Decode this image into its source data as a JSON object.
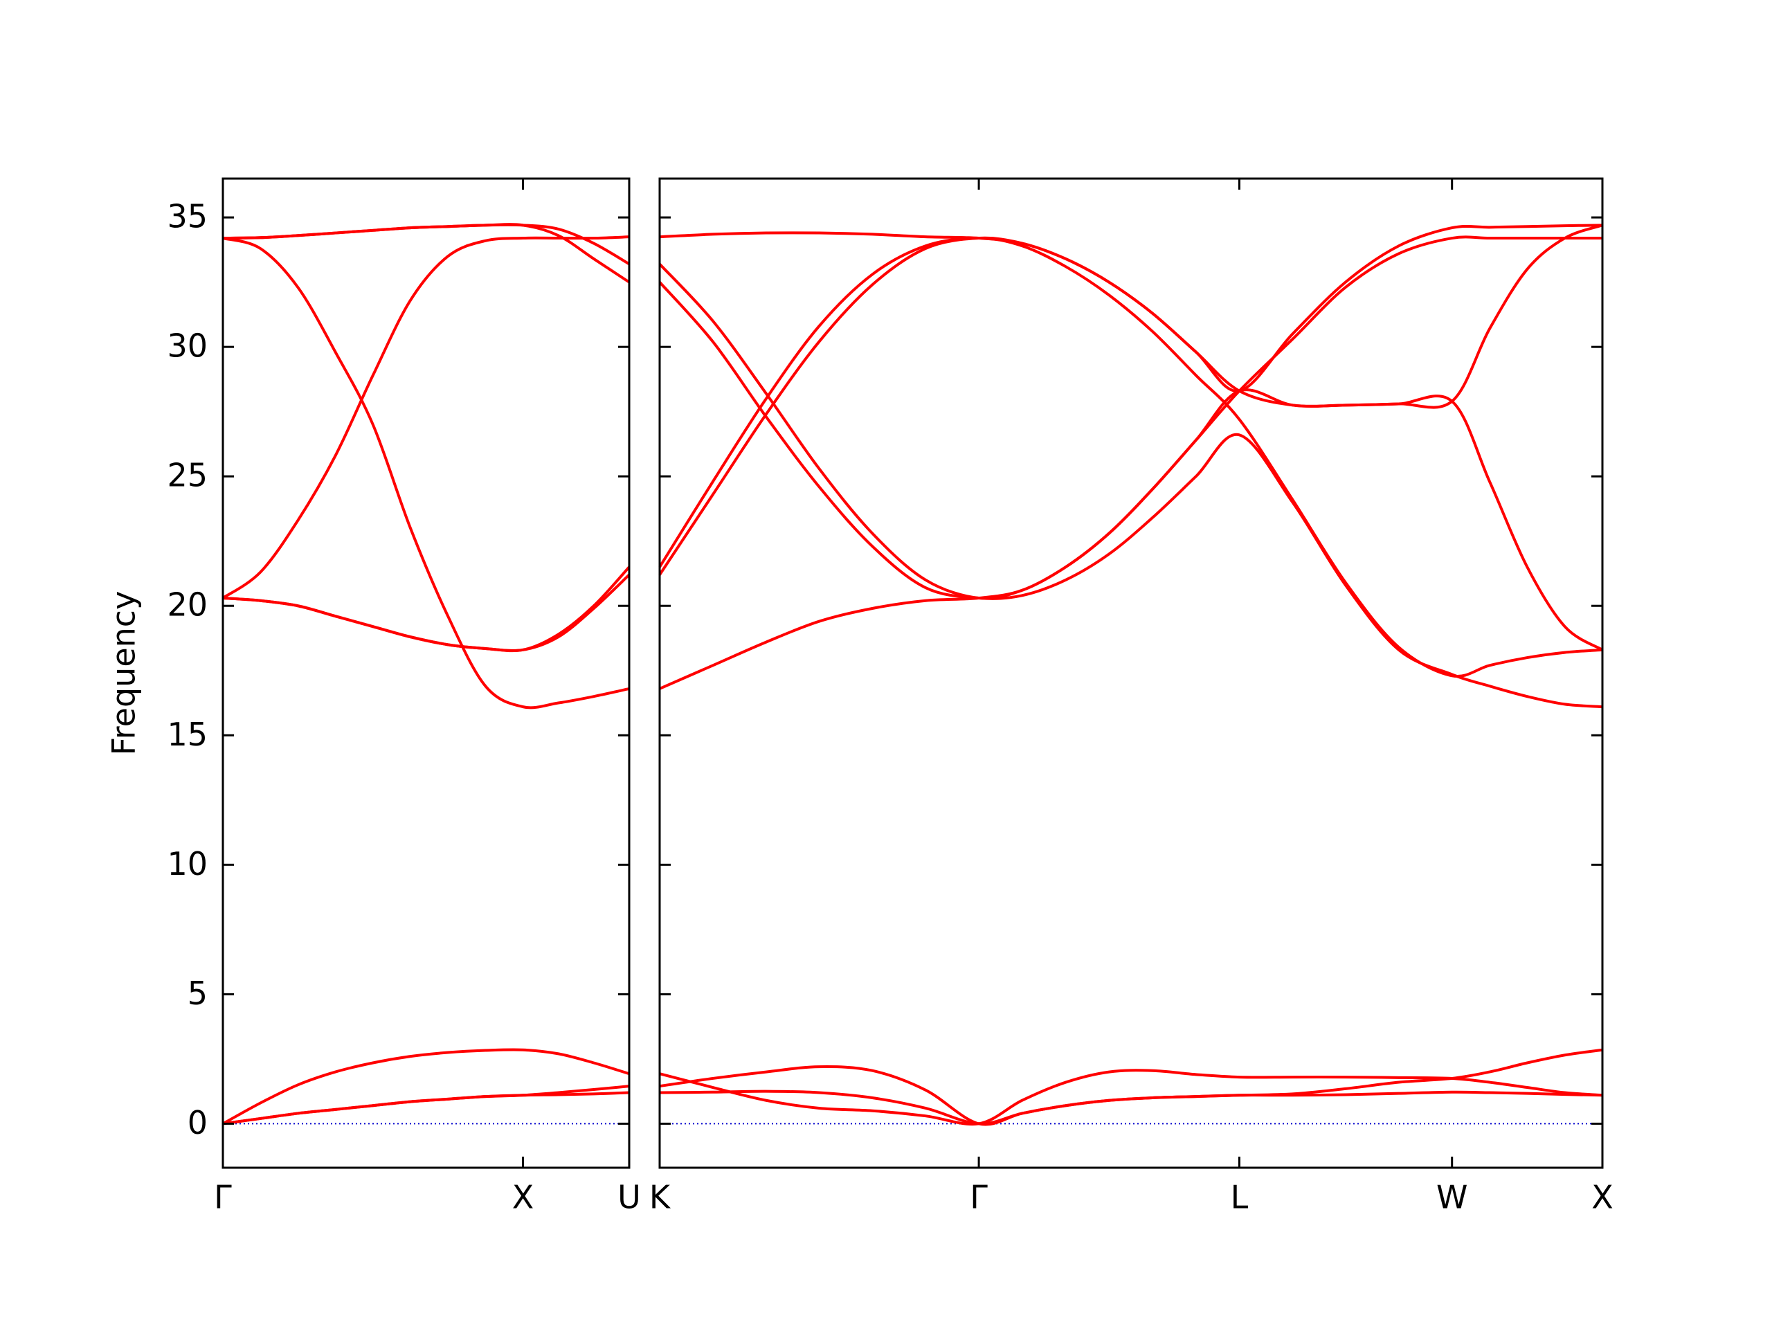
{
  "chart_data": [
    {
      "type": "line",
      "ylabel": "Frequency",
      "x": [
        0,
        0.125,
        0.25,
        0.375,
        0.5,
        0.625,
        0.75,
        0.875,
        1,
        1.118,
        1.236,
        1.354
      ],
      "xlim": [
        0,
        1.354
      ],
      "xticks": [
        {
          "value": 0,
          "label": "Γ"
        },
        {
          "value": 1,
          "label": "X"
        },
        {
          "value": 1.354,
          "label": "U"
        }
      ],
      "ylim": [
        -1.7,
        36.5
      ],
      "yticks": [
        0,
        5,
        10,
        15,
        20,
        25,
        30,
        35
      ],
      "ytick_labels": true,
      "hline": {
        "value": 0,
        "color": "#0000cd"
      },
      "series": [
        {
          "color": "#ff0000",
          "values": [
            0,
            0.2,
            0.4,
            0.55,
            0.7,
            0.85,
            0.95,
            1.05,
            1.1,
            1.12,
            1.15,
            1.2
          ]
        },
        {
          "color": "#ff0000",
          "values": [
            0,
            0.2,
            0.4,
            0.55,
            0.7,
            0.85,
            0.95,
            1.05,
            1.1,
            1.2,
            1.32,
            1.45
          ]
        },
        {
          "color": "#ff0000",
          "values": [
            0,
            0.8,
            1.5,
            2.0,
            2.35,
            2.6,
            2.75,
            2.83,
            2.85,
            2.7,
            2.35,
            1.93
          ]
        },
        {
          "color": "#ff0000",
          "values": [
            34.2,
            34.22,
            34.3,
            34.4,
            34.5,
            34.6,
            34.65,
            34.7,
            34.7,
            34.55,
            34.0,
            33.2
          ]
        },
        {
          "color": "#ff0000",
          "values": [
            34.2,
            34.22,
            34.3,
            34.4,
            34.5,
            34.6,
            34.65,
            34.7,
            34.7,
            34.3,
            33.4,
            32.5
          ]
        },
        {
          "color": "#ff0000",
          "values": [
            20.3,
            21.3,
            23.3,
            25.8,
            28.9,
            31.8,
            33.5,
            34.1,
            34.2,
            34.2,
            34.2,
            34.25
          ]
        },
        {
          "color": "#ff0000",
          "values": [
            34.2,
            33.8,
            32.3,
            29.8,
            27.0,
            23.0,
            19.6,
            16.9,
            16.1,
            16.25,
            16.5,
            16.8
          ]
        },
        {
          "color": "#ff0000",
          "values": [
            20.3,
            20.2,
            20.0,
            19.6,
            19.2,
            18.8,
            18.5,
            18.35,
            18.3,
            18.9,
            20.0,
            21.5
          ]
        },
        {
          "color": "#ff0000",
          "values": [
            20.3,
            20.2,
            20.0,
            19.6,
            19.2,
            18.8,
            18.5,
            18.35,
            18.3,
            18.8,
            19.9,
            21.2
          ]
        }
      ]
    },
    {
      "type": "line",
      "x": [
        1.354,
        1.531,
        1.708,
        1.884,
        2.061,
        2.238,
        2.415,
        2.559,
        2.704,
        2.848,
        2.992,
        3.137,
        3.281,
        3.458,
        3.634,
        3.811,
        3.988,
        4.113,
        4.238,
        4.363,
        4.488
      ],
      "xlim": [
        1.354,
        4.488
      ],
      "xticks": [
        {
          "value": 1.354,
          "label": "K"
        },
        {
          "value": 2.415,
          "label": "Γ"
        },
        {
          "value": 3.281,
          "label": "L"
        },
        {
          "value": 3.988,
          "label": "W"
        },
        {
          "value": 4.488,
          "label": "X"
        }
      ],
      "ylim": [
        -1.7,
        36.5
      ],
      "yticks": [
        0,
        5,
        10,
        15,
        20,
        25,
        30,
        35
      ],
      "ytick_labels": false,
      "hline": {
        "value": 0,
        "color": "#0000cd"
      },
      "series": [
        {
          "color": "#ff0000",
          "values": [
            1.2,
            1.22,
            1.25,
            1.2,
            1.0,
            0.6,
            0,
            0.4,
            0.7,
            0.9,
            1.0,
            1.05,
            1.1,
            1.1,
            1.12,
            1.17,
            1.22,
            1.2,
            1.17,
            1.13,
            1.1
          ]
        },
        {
          "color": "#ff0000",
          "values": [
            1.45,
            1.75,
            2.0,
            2.2,
            2.05,
            1.3,
            0,
            0.4,
            0.7,
            0.9,
            1.0,
            1.05,
            1.1,
            1.15,
            1.35,
            1.6,
            1.75,
            2.0,
            2.35,
            2.65,
            2.85
          ]
        },
        {
          "color": "#ff0000",
          "values": [
            1.93,
            1.4,
            0.9,
            0.6,
            0.5,
            0.3,
            0,
            0.9,
            1.6,
            2.0,
            2.05,
            1.9,
            1.8,
            1.8,
            1.8,
            1.78,
            1.75,
            1.6,
            1.4,
            1.2,
            1.1
          ]
        },
        {
          "color": "#ff0000",
          "values": [
            34.25,
            34.35,
            34.4,
            34.4,
            34.35,
            34.25,
            34.2,
            34.0,
            33.4,
            32.5,
            31.3,
            29.8,
            28.3,
            30.5,
            32.5,
            33.9,
            34.6,
            34.62,
            34.65,
            34.68,
            34.7
          ]
        },
        {
          "color": "#ff0000",
          "values": [
            21.5,
            24.8,
            28.0,
            30.8,
            32.8,
            33.9,
            34.2,
            33.9,
            33.1,
            32.0,
            30.6,
            28.9,
            27.2,
            24.1,
            20.9,
            18.4,
            17.3,
            17.7,
            18.0,
            18.2,
            18.3
          ]
        },
        {
          "color": "#ff0000",
          "values": [
            21.2,
            24.3,
            27.4,
            30.2,
            32.4,
            33.8,
            34.2,
            34.0,
            33.4,
            32.5,
            31.3,
            29.8,
            28.3,
            27.75,
            27.75,
            27.8,
            27.9,
            30.7,
            33.0,
            34.2,
            34.7
          ]
        },
        {
          "color": "#ff0000",
          "values": [
            33.2,
            31.0,
            28.2,
            25.3,
            22.8,
            21.0,
            20.3,
            20.6,
            21.5,
            22.8,
            24.5,
            26.4,
            28.3,
            30.3,
            32.3,
            33.6,
            34.2,
            34.2,
            34.2,
            34.2,
            34.2
          ]
        },
        {
          "color": "#ff0000",
          "values": [
            32.5,
            30.2,
            27.3,
            24.6,
            22.3,
            20.7,
            20.3,
            20.4,
            21.0,
            22.0,
            23.4,
            25.0,
            26.6,
            24.0,
            20.8,
            18.3,
            17.35,
            16.9,
            16.5,
            16.2,
            16.1
          ]
        },
        {
          "color": "#ff0000",
          "values": [
            16.8,
            17.7,
            18.6,
            19.4,
            19.9,
            20.2,
            20.3,
            20.6,
            21.5,
            22.8,
            24.5,
            26.4,
            28.3,
            27.75,
            27.75,
            27.8,
            27.9,
            24.8,
            21.5,
            19.2,
            18.3
          ]
        }
      ]
    }
  ]
}
